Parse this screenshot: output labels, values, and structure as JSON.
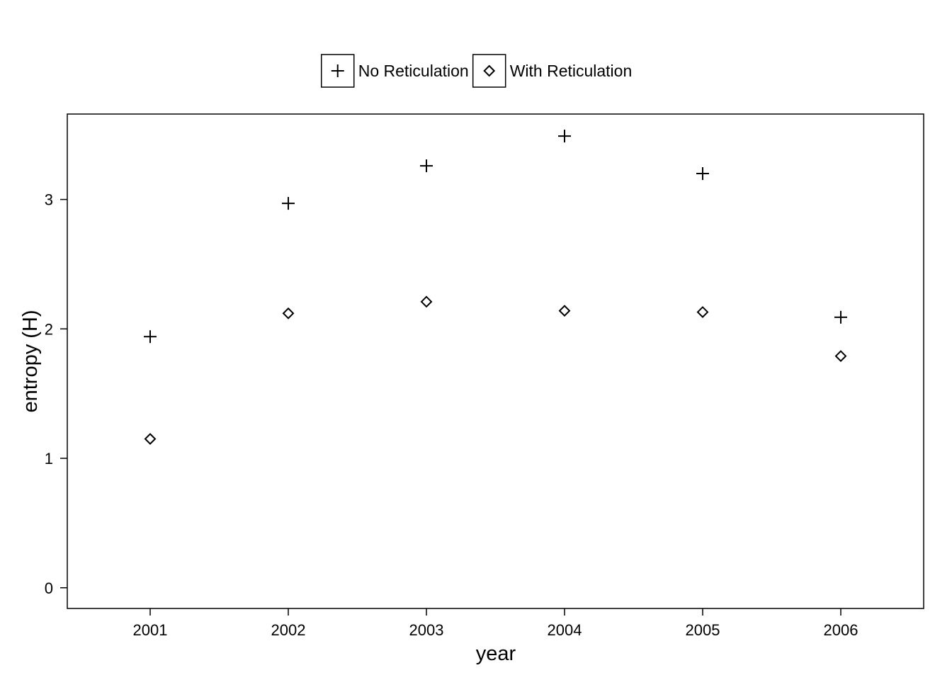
{
  "chart_data": {
    "type": "scatter",
    "title": "",
    "xlabel": "year",
    "ylabel": "entropy (H)",
    "xlim": [
      2000.4,
      2006.6
    ],
    "ylim": [
      -0.16,
      3.66
    ],
    "x_ticks": [
      2001,
      2002,
      2003,
      2004,
      2005,
      2006
    ],
    "y_ticks": [
      0,
      1,
      2,
      3
    ],
    "grid": false,
    "legend_position": "top",
    "x": [
      2001,
      2002,
      2003,
      2004,
      2005,
      2006
    ],
    "series": [
      {
        "name": "No Reticulation",
        "marker": "plus",
        "values": [
          1.94,
          2.97,
          3.26,
          3.49,
          3.2,
          2.09
        ]
      },
      {
        "name": "With Reticulation",
        "marker": "diamond",
        "values": [
          1.15,
          2.12,
          2.21,
          2.14,
          2.13,
          1.79
        ]
      }
    ]
  }
}
